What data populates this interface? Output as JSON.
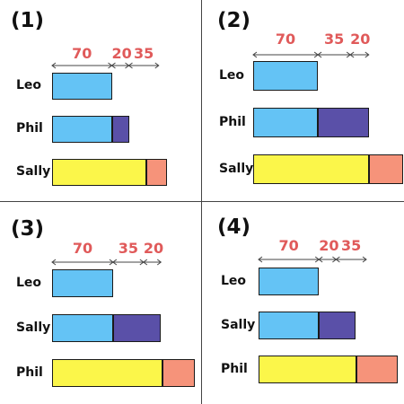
{
  "colors": {
    "accent_label": "#e05a5a",
    "blue": "#64c3f5",
    "purple": "#5a50a8",
    "yellow": "#fbf64a",
    "salmon": "#f6937a",
    "line": "#444444"
  },
  "panels": [
    {
      "number": "(1)",
      "segment_labels": [
        "70",
        "20",
        "35"
      ],
      "segments": [
        70,
        20,
        35
      ],
      "rows": [
        {
          "name": "Leo",
          "bars": [
            {
              "value": 70,
              "color": "blue"
            }
          ]
        },
        {
          "name": "Phil",
          "bars": [
            {
              "value": 70,
              "color": "blue"
            },
            {
              "value": 20,
              "color": "purple"
            }
          ]
        },
        {
          "name": "Sally",
          "bars": [
            {
              "value": 110,
              "color": "yellow"
            },
            {
              "value": 25,
              "color": "salmon"
            }
          ]
        }
      ]
    },
    {
      "number": "(2)",
      "segment_labels": [
        "70",
        "35",
        "20"
      ],
      "segments": [
        70,
        35,
        20
      ],
      "rows": [
        {
          "name": "Leo",
          "bars": [
            {
              "value": 70,
              "color": "blue"
            }
          ]
        },
        {
          "name": "Phil",
          "bars": [
            {
              "value": 70,
              "color": "blue"
            },
            {
              "value": 55,
              "color": "purple"
            }
          ]
        },
        {
          "name": "Sally",
          "bars": [
            {
              "value": 125,
              "color": "yellow"
            },
            {
              "value": 37,
              "color": "salmon"
            }
          ]
        }
      ]
    },
    {
      "number": "(3)",
      "segment_labels": [
        "70",
        "35",
        "20"
      ],
      "segments": [
        70,
        35,
        20
      ],
      "rows": [
        {
          "name": "Leo",
          "bars": [
            {
              "value": 70,
              "color": "blue"
            }
          ]
        },
        {
          "name": "Sally",
          "bars": [
            {
              "value": 70,
              "color": "blue"
            },
            {
              "value": 55,
              "color": "purple"
            }
          ]
        },
        {
          "name": "Phil",
          "bars": [
            {
              "value": 127,
              "color": "yellow"
            },
            {
              "value": 37,
              "color": "salmon"
            }
          ]
        }
      ]
    },
    {
      "number": "(4)",
      "segment_labels": [
        "70",
        "20",
        "35"
      ],
      "segments": [
        70,
        20,
        35
      ],
      "rows": [
        {
          "name": "Leo",
          "bars": [
            {
              "value": 70,
              "color": "blue"
            }
          ]
        },
        {
          "name": "Sally",
          "bars": [
            {
              "value": 70,
              "color": "blue"
            },
            {
              "value": 42,
              "color": "purple"
            }
          ]
        },
        {
          "name": "Phil",
          "bars": [
            {
              "value": 114,
              "color": "yellow"
            },
            {
              "value": 47,
              "color": "salmon"
            }
          ]
        }
      ]
    }
  ]
}
